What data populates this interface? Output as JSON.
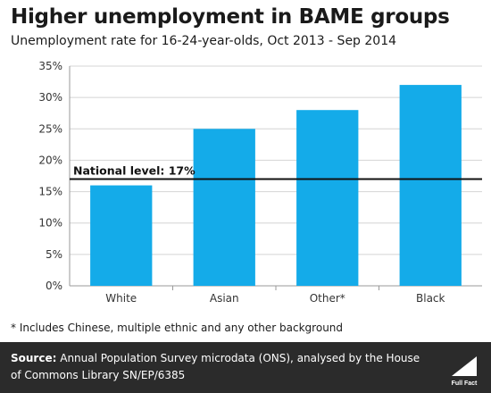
{
  "title": "Higher unemployment in BAME groups",
  "subtitle": "Unemployment rate for 16-24-year-olds, Oct 2013 - Sep 2014",
  "chart_data": {
    "type": "bar",
    "title": "Higher unemployment in BAME groups",
    "subtitle": "Unemployment rate for 16-24-year-olds, Oct 2013 - Sep 2014",
    "categories": [
      "White",
      "Asian",
      "Other*",
      "Black"
    ],
    "values": [
      16,
      25,
      28,
      32
    ],
    "unit": "%",
    "ylim": [
      0,
      35
    ],
    "yticks": [
      "0%",
      "5%",
      "10%",
      "15%",
      "20%",
      "25%",
      "30%",
      "35%"
    ],
    "grid": true,
    "reference_line": {
      "value": 17,
      "label": "National level: 17%"
    },
    "bar_color": "#14abe9"
  },
  "footnote": "* Includes Chinese, multiple ethnic and any other background",
  "footer": {
    "source_label": "Source:",
    "source_text": "Annual Population Survey microdata (ONS), analysed by the House of Commons Library SN/EP/6385",
    "logo_text": "Full Fact",
    "background": "#2b2b2b"
  }
}
